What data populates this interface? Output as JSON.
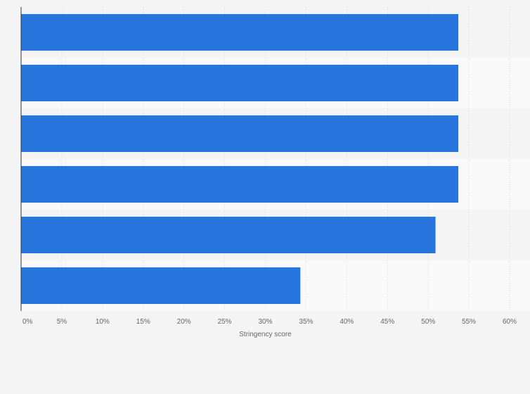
{
  "chart_data": {
    "type": "bar",
    "orientation": "horizontal",
    "categories": [
      "",
      "",
      "",
      "",
      "",
      ""
    ],
    "values": [
      53.7,
      53.7,
      53.7,
      53.7,
      50.9,
      34.3
    ],
    "title": "",
    "xlabel": "Stringency score",
    "ylabel": "",
    "xlim": [
      0,
      60
    ],
    "x_ticks": [
      "0%",
      "5%",
      "10%",
      "15%",
      "20%",
      "25%",
      "30%",
      "35%",
      "40%",
      "45%",
      "50%",
      "55%",
      "60%"
    ],
    "value_unit": "%",
    "grid": "vertical",
    "legend": "none",
    "colors": {
      "bar": "#2876dd",
      "background": "#f4f4f4",
      "band_light": "#f9f9f9",
      "band_dark": "#f4f4f4",
      "gridline": "#dcdcdc",
      "axis_line": "#333333",
      "tick_text": "#666666"
    }
  }
}
